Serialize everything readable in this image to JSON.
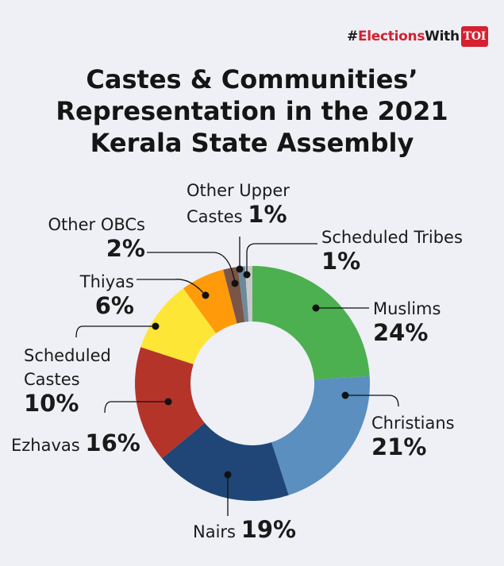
{
  "branding": {
    "hashtag": "#",
    "elections": "Elections",
    "with": "With",
    "toi": "TOI"
  },
  "title": [
    "Castes & Communities’",
    "Representation in the 2021",
    "Kerala State Assembly"
  ],
  "colors": {
    "background": "#eef0f5",
    "text": "#1a1a1a",
    "brand": "#d6202f"
  },
  "chart_data": {
    "type": "pie",
    "variant": "donut",
    "title": "Castes & Communities’ Representation in the 2021 Kerala State Assembly",
    "start": "top, clockwise",
    "slices": [
      {
        "label": "Muslims",
        "value": 24,
        "display": "24%",
        "color": "#4caf50"
      },
      {
        "label": "Christians",
        "value": 21,
        "display": "21%",
        "color": "#5a8fbf"
      },
      {
        "label": "Nairs",
        "value": 19,
        "display": "19%",
        "color": "#1f4676"
      },
      {
        "label": "Ezhavas",
        "value": 16,
        "display": "16%",
        "color": "#b5342a"
      },
      {
        "label": "Scheduled Castes",
        "value": 10,
        "display": "10%",
        "color": "#fde636"
      },
      {
        "label": "Thiyas",
        "value": 6,
        "display": "6%",
        "color": "#ff9a0a"
      },
      {
        "label": "Other OBCs",
        "value": 2,
        "display": "2%",
        "color": "#7a5548"
      },
      {
        "label": "Other Upper Castes",
        "value": 1,
        "display": "1%",
        "color": "#6d8a9c"
      },
      {
        "label": "Scheduled Tribes",
        "value": 1,
        "display": "1%",
        "color": "#c9c9c9"
      }
    ],
    "label_lines": {
      "muslims": "Muslims",
      "christians": "Christians",
      "nairs": "Nairs",
      "ezhavas": "Ezhavas",
      "sc1": "Scheduled",
      "sc2": "Castes",
      "thiyas": "Thiyas",
      "obc": "Other OBCs",
      "ouc1": "Other Upper",
      "ouc2": "Castes",
      "st": "Scheduled Tribes"
    }
  }
}
